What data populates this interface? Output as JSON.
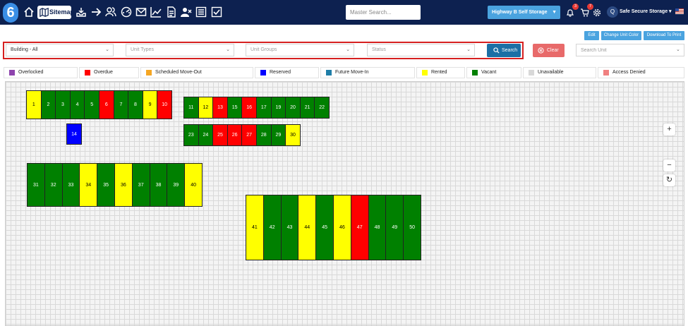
{
  "header": {
    "logo_text": "6",
    "sitemap_label": "Sitemap",
    "master_search_placeholder": "Master Search...",
    "facility": "Highway B Self Storage",
    "notifications_count": "3",
    "cart_count": "7",
    "avatar_initial": "Q",
    "user_name": "Safe Secure Storage",
    "nav_icons": [
      "home-icon",
      "map-icon",
      "inbox-icon",
      "arrow-right-icon",
      "users-icon",
      "dashboard-icon",
      "mail-icon",
      "chart-icon",
      "document-icon",
      "user-x-icon",
      "list-icon",
      "checklist-icon"
    ]
  },
  "actions": {
    "edit": "Edit",
    "change_color": "Change Unit Color",
    "download": "Download To Print"
  },
  "filters": {
    "building": "Building - All",
    "unit_types": "Unit Types",
    "unit_groups": "Unit Groups",
    "status": "Status",
    "search_btn": "Search",
    "clear_btn": "Clear",
    "search_unit_placeholder": "Search Unit"
  },
  "legend": [
    {
      "label": "Overlocked",
      "color": "#8e44ad"
    },
    {
      "label": "Overdue",
      "color": "#ff0000"
    },
    {
      "label": "Scheduled Move-Out",
      "color": "#f5a623"
    },
    {
      "label": "Reserved",
      "color": "#0000ff"
    },
    {
      "label": "Future Move-In",
      "color": "#1f7ea8"
    },
    {
      "label": "Rented",
      "color": "#ffff00"
    },
    {
      "label": "Vacant",
      "color": "#008000"
    },
    {
      "label": "Unavailable",
      "color": "#d8d8d8"
    },
    {
      "label": "Access Denied",
      "color": "#f08080"
    }
  ],
  "units": [
    {
      "n": "1",
      "s": "rented"
    },
    {
      "n": "2",
      "s": "vacant"
    },
    {
      "n": "3",
      "s": "vacant"
    },
    {
      "n": "4",
      "s": "vacant"
    },
    {
      "n": "5",
      "s": "vacant"
    },
    {
      "n": "6",
      "s": "overdue"
    },
    {
      "n": "7",
      "s": "vacant"
    },
    {
      "n": "8",
      "s": "vacant"
    },
    {
      "n": "9",
      "s": "rented"
    },
    {
      "n": "10",
      "s": "overdue"
    },
    {
      "n": "11",
      "s": "vacant"
    },
    {
      "n": "12",
      "s": "rented"
    },
    {
      "n": "13",
      "s": "overdue"
    },
    {
      "n": "15",
      "s": "vacant"
    },
    {
      "n": "16",
      "s": "overdue"
    },
    {
      "n": "17",
      "s": "vacant"
    },
    {
      "n": "19",
      "s": "vacant"
    },
    {
      "n": "20",
      "s": "vacant"
    },
    {
      "n": "21",
      "s": "vacant"
    },
    {
      "n": "22",
      "s": "vacant"
    },
    {
      "n": "14",
      "s": "reserved"
    },
    {
      "n": "23",
      "s": "vacant"
    },
    {
      "n": "24",
      "s": "vacant"
    },
    {
      "n": "25",
      "s": "overdue"
    },
    {
      "n": "26",
      "s": "overdue"
    },
    {
      "n": "27",
      "s": "overdue"
    },
    {
      "n": "28",
      "s": "vacant"
    },
    {
      "n": "29",
      "s": "vacant"
    },
    {
      "n": "30",
      "s": "rented"
    },
    {
      "n": "31",
      "s": "vacant"
    },
    {
      "n": "32",
      "s": "vacant"
    },
    {
      "n": "33",
      "s": "vacant"
    },
    {
      "n": "34",
      "s": "rented"
    },
    {
      "n": "35",
      "s": "vacant"
    },
    {
      "n": "36",
      "s": "rented"
    },
    {
      "n": "37",
      "s": "vacant"
    },
    {
      "n": "38",
      "s": "vacant"
    },
    {
      "n": "39",
      "s": "vacant"
    },
    {
      "n": "40",
      "s": "rented"
    },
    {
      "n": "41",
      "s": "rented"
    },
    {
      "n": "42",
      "s": "vacant"
    },
    {
      "n": "43",
      "s": "vacant"
    },
    {
      "n": "44",
      "s": "rented"
    },
    {
      "n": "45",
      "s": "vacant"
    },
    {
      "n": "46",
      "s": "rented"
    },
    {
      "n": "47",
      "s": "overdue"
    },
    {
      "n": "48",
      "s": "vacant"
    },
    {
      "n": "49",
      "s": "vacant"
    },
    {
      "n": "50",
      "s": "vacant"
    }
  ],
  "status_colors": {
    "vacant": "#008000",
    "rented": "#ffff00",
    "overdue": "#ff0000",
    "reserved": "#0000ff"
  },
  "zoom": {
    "in": "+",
    "out": "−",
    "reset": "↻"
  }
}
